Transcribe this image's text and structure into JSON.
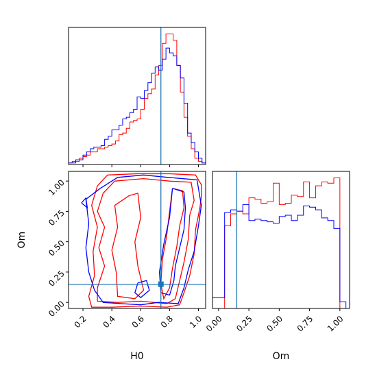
{
  "figure": {
    "x_axis_label": "H0",
    "y_axis_label": "Om",
    "right_axis_label": "Om"
  },
  "colors": {
    "series_red": "#ff0000",
    "series_blue": "#0000ff",
    "truth": "#1f77b4",
    "axes": "#000000"
  },
  "chart_data": [
    {
      "type": "histogram",
      "panel": "H0 marginal",
      "xlim": [
        0.1,
        1.05
      ],
      "x_ticks": [
        "0.2",
        "0.4",
        "0.6",
        "0.8",
        "1.0"
      ],
      "truth": 0.74,
      "bins": [
        0.1,
        0.125,
        0.15,
        0.175,
        0.2,
        0.225,
        0.25,
        0.275,
        0.3,
        0.325,
        0.35,
        0.375,
        0.4,
        0.425,
        0.45,
        0.475,
        0.5,
        0.525,
        0.55,
        0.575,
        0.6,
        0.625,
        0.65,
        0.675,
        0.7,
        0.725,
        0.75,
        0.775,
        0.8,
        0.825,
        0.85,
        0.875,
        0.9,
        0.925,
        0.95,
        0.975,
        1.0,
        1.025,
        1.05
      ],
      "series": [
        {
          "color": "red",
          "values": [
            0.01,
            0.02,
            0.02,
            0.04,
            0.05,
            0.06,
            0.08,
            0.08,
            0.1,
            0.1,
            0.11,
            0.12,
            0.13,
            0.15,
            0.19,
            0.2,
            0.23,
            0.27,
            0.28,
            0.29,
            0.35,
            0.42,
            0.45,
            0.48,
            0.57,
            0.63,
            0.77,
            0.83,
            0.83,
            0.79,
            0.63,
            0.46,
            0.3,
            0.18,
            0.1,
            0.04,
            0.02,
            0.01
          ]
        },
        {
          "color": "blue",
          "values": [
            0.01,
            0.01,
            0.03,
            0.03,
            0.06,
            0.08,
            0.1,
            0.11,
            0.11,
            0.12,
            0.16,
            0.18,
            0.22,
            0.22,
            0.25,
            0.29,
            0.3,
            0.33,
            0.35,
            0.43,
            0.42,
            0.47,
            0.52,
            0.58,
            0.62,
            0.6,
            0.67,
            0.74,
            0.71,
            0.69,
            0.63,
            0.55,
            0.39,
            0.2,
            0.14,
            0.08,
            0.04,
            0.01
          ]
        }
      ]
    },
    {
      "type": "contour",
      "panel": "H0 vs Om joint",
      "xlim": [
        0.1,
        1.05
      ],
      "ylim": [
        -0.05,
        1.08
      ],
      "x_ticks": [
        "0.2",
        "0.4",
        "0.6",
        "0.8",
        "1.0"
      ],
      "y_ticks": [
        "0.00",
        "0.25",
        "0.50",
        "0.75",
        "1.00"
      ],
      "truth": {
        "x": 0.74,
        "y": 0.15
      },
      "series": [
        {
          "color": "red",
          "contours": [
            [
              [
                0.37,
                1.05
              ],
              [
                0.57,
                1.06
              ],
              [
                0.8,
                1.06
              ],
              [
                0.98,
                1.05
              ],
              [
                1.02,
                0.97
              ],
              [
                1.02,
                0.87
              ],
              [
                1.01,
                0.78
              ],
              [
                0.98,
                0.6
              ],
              [
                0.97,
                0.4
              ],
              [
                0.94,
                0.22
              ],
              [
                0.9,
                0.08
              ],
              [
                0.87,
                -0.02
              ],
              [
                0.78,
                -0.04
              ],
              [
                0.6,
                -0.03
              ],
              [
                0.4,
                -0.04
              ],
              [
                0.26,
                -0.04
              ],
              [
                0.24,
                0.05
              ],
              [
                0.28,
                0.22
              ],
              [
                0.27,
                0.42
              ],
              [
                0.3,
                0.62
              ],
              [
                0.26,
                0.8
              ],
              [
                0.3,
                0.96
              ],
              [
                0.37,
                1.05
              ]
            ],
            [
              [
                0.42,
                1.0
              ],
              [
                0.62,
                1.02
              ],
              [
                0.8,
                1.0
              ],
              [
                0.95,
                0.99
              ],
              [
                0.97,
                0.84
              ],
              [
                0.94,
                0.72
              ],
              [
                0.93,
                0.52
              ],
              [
                0.9,
                0.33
              ],
              [
                0.87,
                0.18
              ],
              [
                0.84,
                0.03
              ],
              [
                0.78,
                -0.01
              ],
              [
                0.6,
                0.01
              ],
              [
                0.44,
                0.0
              ],
              [
                0.3,
                0.01
              ],
              [
                0.3,
                0.12
              ],
              [
                0.35,
                0.3
              ],
              [
                0.31,
                0.45
              ],
              [
                0.35,
                0.62
              ],
              [
                0.3,
                0.75
              ],
              [
                0.34,
                0.9
              ],
              [
                0.42,
                1.0
              ]
            ],
            [
              [
                0.82,
                0.94
              ],
              [
                0.89,
                0.92
              ],
              [
                0.9,
                0.78
              ],
              [
                0.87,
                0.63
              ],
              [
                0.85,
                0.46
              ],
              [
                0.82,
                0.28
              ],
              [
                0.8,
                0.12
              ],
              [
                0.76,
                0.03
              ],
              [
                0.74,
                0.15
              ],
              [
                0.75,
                0.35
              ],
              [
                0.78,
                0.55
              ],
              [
                0.8,
                0.75
              ],
              [
                0.82,
                0.94
              ]
            ],
            [
              [
                0.52,
                0.88
              ],
              [
                0.58,
                0.9
              ],
              [
                0.6,
                0.7
              ],
              [
                0.56,
                0.5
              ],
              [
                0.58,
                0.3
              ],
              [
                0.62,
                0.1
              ],
              [
                0.56,
                0.03
              ],
              [
                0.44,
                0.05
              ],
              [
                0.43,
                0.25
              ],
              [
                0.4,
                0.43
              ],
              [
                0.44,
                0.62
              ],
              [
                0.42,
                0.8
              ],
              [
                0.52,
                0.88
              ]
            ]
          ]
        },
        {
          "color": "blue",
          "contours": [
            [
              [
                0.32,
                0.94
              ],
              [
                0.44,
                1.03
              ],
              [
                0.62,
                1.05
              ],
              [
                0.79,
                1.03
              ],
              [
                0.99,
                1.01
              ],
              [
                1.02,
                0.8
              ],
              [
                1.0,
                0.63
              ],
              [
                0.97,
                0.42
              ],
              [
                0.93,
                0.27
              ],
              [
                0.9,
                0.12
              ],
              [
                0.86,
                -0.01
              ],
              [
                0.72,
                0.0
              ],
              [
                0.6,
                -0.02
              ],
              [
                0.46,
                -0.01
              ],
              [
                0.34,
                0.0
              ],
              [
                0.28,
                0.1
              ],
              [
                0.24,
                0.25
              ],
              [
                0.22,
                0.45
              ],
              [
                0.24,
                0.65
              ],
              [
                0.22,
                0.85
              ],
              [
                0.32,
                0.94
              ]
            ],
            [
              [
                0.82,
                0.94
              ],
              [
                0.9,
                0.91
              ],
              [
                0.91,
                0.78
              ],
              [
                0.9,
                0.6
              ],
              [
                0.87,
                0.45
              ],
              [
                0.84,
                0.3
              ],
              [
                0.83,
                0.18
              ],
              [
                0.8,
                0.06
              ],
              [
                0.74,
                0.08
              ],
              [
                0.73,
                0.25
              ],
              [
                0.76,
                0.48
              ],
              [
                0.8,
                0.7
              ],
              [
                0.82,
                0.94
              ]
            ],
            [
              [
                0.19,
                0.82
              ],
              [
                0.22,
                0.86
              ],
              [
                0.23,
                0.78
              ],
              [
                0.19,
                0.82
              ]
            ],
            [
              [
                0.58,
                0.16
              ],
              [
                0.64,
                0.18
              ],
              [
                0.66,
                0.1
              ],
              [
                0.6,
                0.04
              ],
              [
                0.56,
                0.08
              ],
              [
                0.58,
                0.16
              ]
            ]
          ]
        }
      ]
    },
    {
      "type": "histogram",
      "panel": "Om marginal",
      "xlim": [
        -0.05,
        1.08
      ],
      "x_ticks": [
        "0.00",
        "0.25",
        "0.50",
        "0.75",
        "1.00"
      ],
      "truth": 0.15,
      "bins": [
        -0.05,
        0.0,
        0.05,
        0.1,
        0.15,
        0.2,
        0.25,
        0.3,
        0.35,
        0.4,
        0.45,
        0.5,
        0.55,
        0.6,
        0.65,
        0.7,
        0.75,
        0.8,
        0.85,
        0.9,
        0.95,
        1.0,
        1.05
      ],
      "series": [
        {
          "color": "red",
          "values": [
            0.0,
            0.0,
            0.62,
            0.71,
            0.73,
            0.71,
            0.83,
            0.82,
            0.79,
            0.8,
            0.94,
            0.78,
            0.79,
            0.85,
            0.84,
            0.95,
            0.83,
            0.92,
            0.95,
            0.94,
            0.98,
            0.0
          ]
        },
        {
          "color": "blue",
          "values": [
            0.08,
            0.08,
            0.72,
            0.74,
            0.73,
            0.78,
            0.66,
            0.67,
            0.66,
            0.65,
            0.64,
            0.69,
            0.7,
            0.66,
            0.7,
            0.77,
            0.76,
            0.74,
            0.68,
            0.66,
            0.6,
            0.05
          ]
        }
      ]
    }
  ]
}
